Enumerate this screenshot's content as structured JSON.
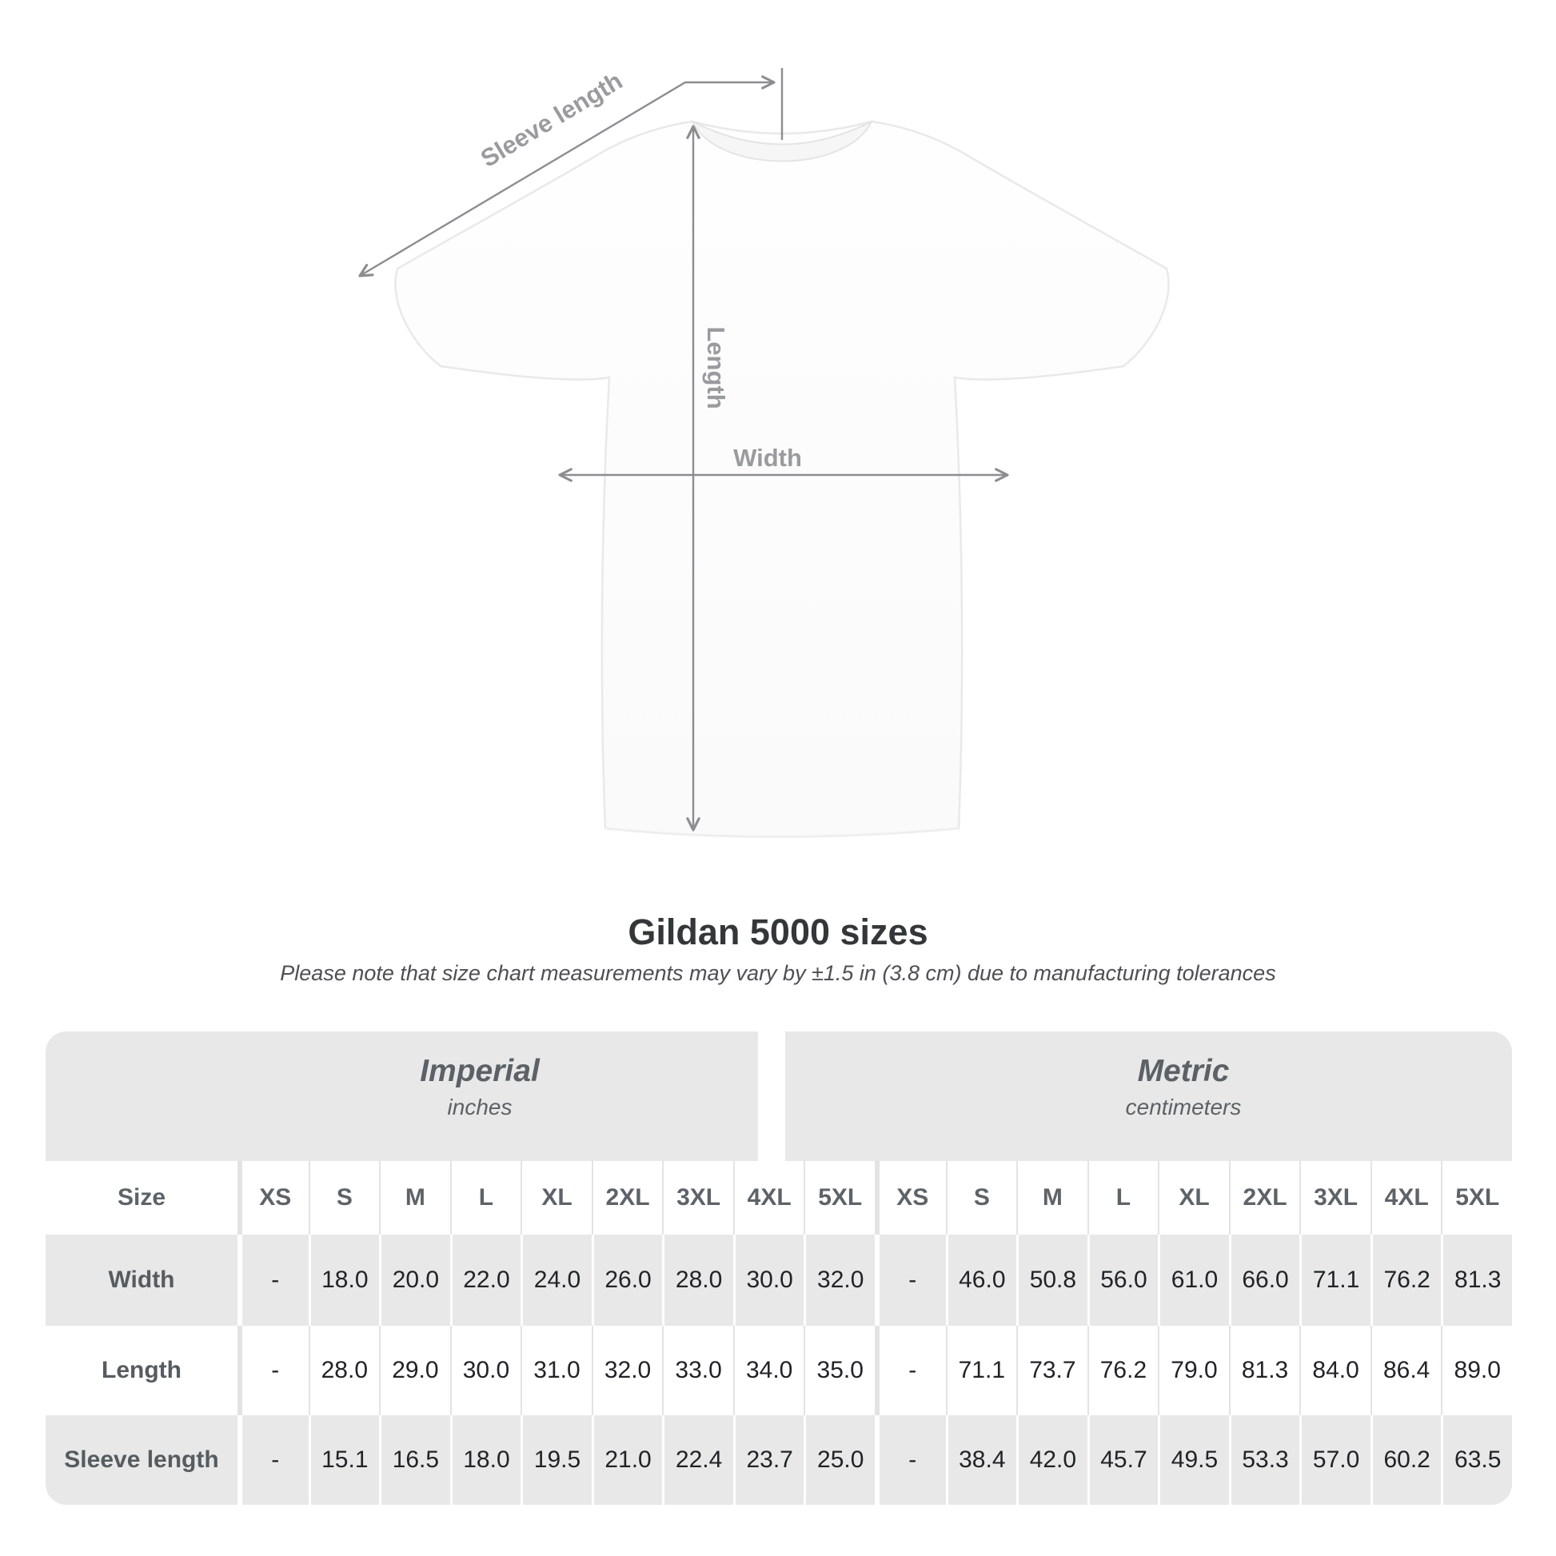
{
  "page": {
    "title": "Gildan 5000 sizes",
    "subtitle": "Please note that size chart measurements may vary by ±1.5 in (3.8 cm) due to manufacturing tolerances"
  },
  "diagram": {
    "sleeve_length_label": "Sleeve length",
    "length_label": "Length",
    "width_label": "Width"
  },
  "table": {
    "groups": [
      {
        "label": "Imperial",
        "unit": "inches"
      },
      {
        "label": "Metric",
        "unit": "centimeters"
      }
    ],
    "size_column_header": "Size",
    "size_headers": [
      "XS",
      "S",
      "M",
      "L",
      "XL",
      "2XL",
      "3XL",
      "4XL",
      "5XL"
    ],
    "rows": [
      {
        "label": "Width",
        "imperial": [
          "-",
          "18.0",
          "20.0",
          "22.0",
          "24.0",
          "26.0",
          "28.0",
          "30.0",
          "32.0"
        ],
        "metric": [
          "-",
          "46.0",
          "50.8",
          "56.0",
          "61.0",
          "66.0",
          "71.1",
          "76.2",
          "81.3"
        ]
      },
      {
        "label": "Length",
        "imperial": [
          "-",
          "28.0",
          "29.0",
          "30.0",
          "31.0",
          "32.0",
          "33.0",
          "34.0",
          "35.0"
        ],
        "metric": [
          "-",
          "71.1",
          "73.7",
          "76.2",
          "79.0",
          "81.3",
          "84.0",
          "86.4",
          "89.0"
        ]
      },
      {
        "label": "Sleeve length",
        "imperial": [
          "-",
          "15.1",
          "16.5",
          "18.0",
          "19.5",
          "21.0",
          "22.4",
          "23.7",
          "25.0"
        ],
        "metric": [
          "-",
          "38.4",
          "42.0",
          "45.7",
          "49.5",
          "53.3",
          "57.0",
          "60.2",
          "63.5"
        ]
      }
    ]
  },
  "chart_data": {
    "type": "table",
    "title": "Gildan 5000 sizes",
    "column_groups": [
      "Imperial (inches)",
      "Metric (centimeters)"
    ],
    "columns": [
      "Size",
      "XS",
      "S",
      "M",
      "L",
      "XL",
      "2XL",
      "3XL",
      "4XL",
      "5XL",
      "XS",
      "S",
      "M",
      "L",
      "XL",
      "2XL",
      "3XL",
      "4XL",
      "5XL"
    ],
    "rows": [
      [
        "Width",
        "-",
        18.0,
        20.0,
        22.0,
        24.0,
        26.0,
        28.0,
        30.0,
        32.0,
        "-",
        46.0,
        50.8,
        56.0,
        61.0,
        66.0,
        71.1,
        76.2,
        81.3
      ],
      [
        "Length",
        "-",
        28.0,
        29.0,
        30.0,
        31.0,
        32.0,
        33.0,
        34.0,
        35.0,
        "-",
        71.1,
        73.7,
        76.2,
        79.0,
        81.3,
        84.0,
        86.4,
        89.0
      ],
      [
        "Sleeve length",
        "-",
        15.1,
        16.5,
        18.0,
        19.5,
        21.0,
        22.4,
        23.7,
        25.0,
        "-",
        38.4,
        42.0,
        45.7,
        49.5,
        53.3,
        57.0,
        60.2,
        63.5
      ]
    ]
  },
  "colors": {
    "annotation_line": "#8b8d8f",
    "annotation_label": "#999b9e",
    "table_background": "#e8e8e8",
    "white_row_separator": "#e3e3e3",
    "gray_row_separator": "#ffffff",
    "value_text": "#212325",
    "heading_text": "#5b6166",
    "title_text": "#343739"
  }
}
